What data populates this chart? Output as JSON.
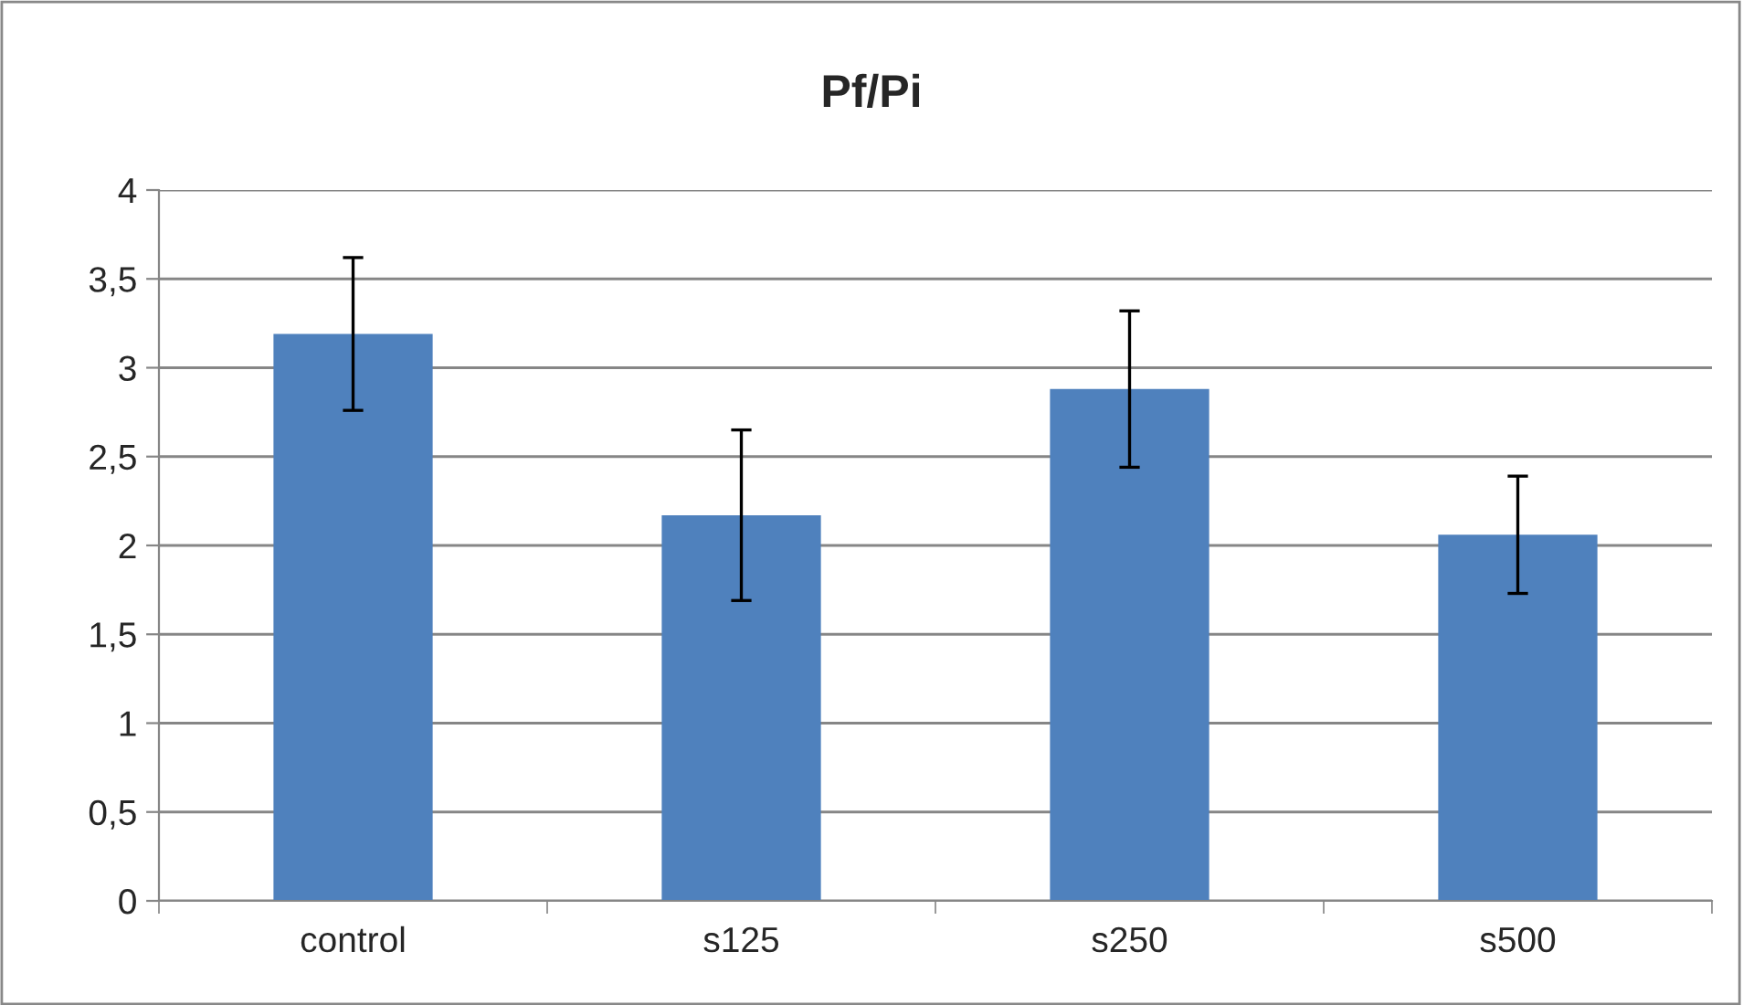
{
  "chart_data": {
    "type": "bar",
    "title": "Pf/Pi",
    "categories": [
      "control",
      "s125",
      "s250",
      "s500"
    ],
    "values": [
      3.19,
      2.17,
      2.88,
      2.06
    ],
    "errors": [
      0.43,
      0.48,
      0.44,
      0.33
    ],
    "color": "#4f81bd",
    "ylim": [
      0,
      4
    ],
    "yticks": [
      {
        "value": 0,
        "label": "0"
      },
      {
        "value": 0.5,
        "label": "0,5"
      },
      {
        "value": 1,
        "label": "1"
      },
      {
        "value": 1.5,
        "label": "1,5"
      },
      {
        "value": 2,
        "label": "2"
      },
      {
        "value": 2.5,
        "label": "2,5"
      },
      {
        "value": 3,
        "label": "3"
      },
      {
        "value": 3.5,
        "label": "3,5"
      },
      {
        "value": 4,
        "label": "4"
      }
    ],
    "grid": "y",
    "legend": false
  }
}
